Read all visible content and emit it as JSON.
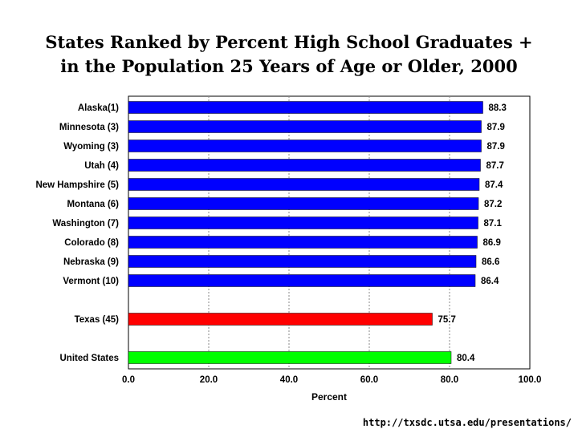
{
  "chart_data": {
    "type": "bar",
    "orientation": "horizontal",
    "title_line1": "States Ranked by Percent High School Graduates +",
    "title_line2": "in the Population 25 Years of Age or Older, 2000",
    "xlabel": "Percent",
    "ylabel": "",
    "xlim": [
      0,
      100
    ],
    "x_ticks": [
      "0.0",
      "20.0",
      "40.0",
      "60.0",
      "80.0",
      "100.0"
    ],
    "grid": "vertical dashed",
    "legend": "none",
    "categories": [
      "Alaska(1)",
      "Minnesota (3)",
      "Wyoming (3)",
      "Utah (4)",
      "New Hampshire (5)",
      "Montana (6)",
      "Washington (7)",
      "Colorado (8)",
      "Nebraska (9)",
      "Vermont (10)",
      "Texas (45)",
      "United States"
    ],
    "values": [
      88.3,
      87.9,
      87.9,
      87.7,
      87.4,
      87.2,
      87.1,
      86.9,
      86.6,
      86.4,
      75.7,
      80.4
    ],
    "value_labels": [
      "88.3",
      "87.9",
      "87.9",
      "87.7",
      "87.4",
      "87.2",
      "87.1",
      "86.9",
      "86.6",
      "86.4",
      "75.7",
      "80.4"
    ],
    "bar_colors": [
      "#0000ff",
      "#0000ff",
      "#0000ff",
      "#0000ff",
      "#0000ff",
      "#0000ff",
      "#0000ff",
      "#0000ff",
      "#0000ff",
      "#0000ff",
      "#ff0000",
      "#00ff00"
    ]
  },
  "footer": {
    "source_url": "http://txsdc.utsa.edu/presentations/"
  }
}
